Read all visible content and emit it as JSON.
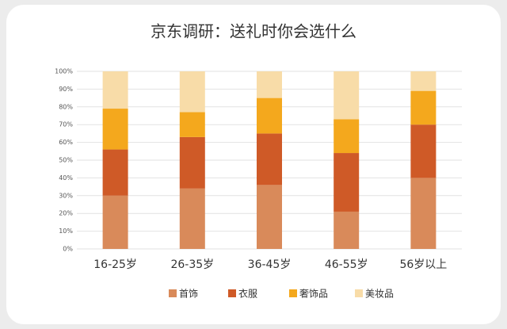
{
  "chart_data": {
    "type": "stacked_bar",
    "title": "京东调研：送礼时你会选什么",
    "categories": [
      "16-25岁",
      "26-35岁",
      "36-45岁",
      "46-55岁",
      "56岁以上"
    ],
    "series": [
      {
        "name": "首饰",
        "color": "#d98a5a",
        "values": [
          30,
          34,
          36,
          21,
          40
        ]
      },
      {
        "name": "衣服",
        "color": "#cf5a27",
        "values": [
          26,
          29,
          29,
          33,
          30
        ]
      },
      {
        "name": "奢饰品",
        "color": "#f4a81d",
        "values": [
          23,
          14,
          20,
          19,
          19
        ]
      },
      {
        "name": "美妆品",
        "color": "#f8dca8",
        "values": [
          21,
          23,
          15,
          27,
          11
        ]
      }
    ],
    "ylim": [
      0,
      100
    ],
    "yticks": [
      {
        "value": 0,
        "label": "0%"
      },
      {
        "value": 10,
        "label": "10%"
      },
      {
        "value": 20,
        "label": "20%"
      },
      {
        "value": 30,
        "label": "30%"
      },
      {
        "value": 40,
        "label": "40%"
      },
      {
        "value": 50,
        "label": "50%"
      },
      {
        "value": 60,
        "label": "60%"
      },
      {
        "value": 70,
        "label": "70%"
      },
      {
        "value": 80,
        "label": "80%"
      },
      {
        "value": 90,
        "label": "90%"
      },
      {
        "value": 100,
        "label": "100%"
      }
    ],
    "grid": true,
    "legend": "bottom"
  }
}
